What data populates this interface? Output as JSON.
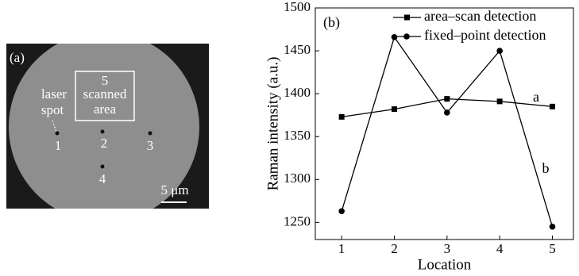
{
  "panel_a": {
    "label": "(a)",
    "box_number": "5",
    "box_label": [
      "scanned",
      "area"
    ],
    "spot_label": [
      "laser",
      "spot"
    ],
    "points": [
      "1",
      "2",
      "3",
      "4"
    ],
    "scale_bar": "5 μm"
  },
  "chart_data": {
    "type": "line",
    "panel_label": "(b)",
    "x_label": "Location",
    "y_label": "Raman intensity (a.u.)",
    "x": [
      1,
      2,
      3,
      4,
      5
    ],
    "xlim": [
      0.5,
      5.4
    ],
    "xticks": [
      1,
      2,
      3,
      4,
      5
    ],
    "ylim": [
      1230,
      1500
    ],
    "yticks": [
      1250,
      1300,
      1350,
      1400,
      1450,
      1500
    ],
    "series": [
      {
        "name": "area–scan detection",
        "color": "#000000",
        "marker": "square",
        "values": [
          1373,
          1382,
          1394,
          1391,
          1385
        ]
      },
      {
        "name": "fixed–point detection",
        "color": "#000000",
        "marker": "circle",
        "values": [
          1263,
          1466,
          1378,
          1450,
          1245
        ]
      }
    ],
    "annotations": [
      "a",
      "b"
    ]
  }
}
